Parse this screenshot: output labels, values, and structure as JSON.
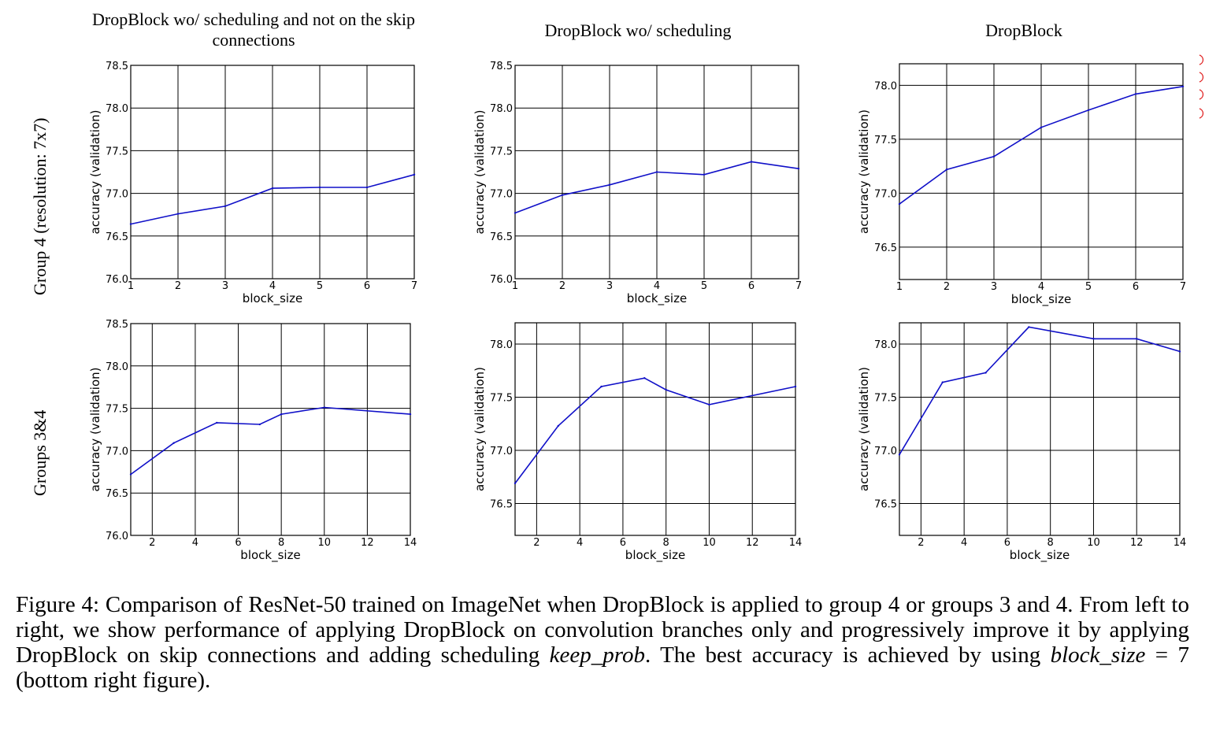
{
  "col_titles": [
    "DropBlock wo/ scheduling and not on the skip connections",
    "DropBlock wo/ scheduling",
    "DropBlock"
  ],
  "row_labels": [
    "Group 4 (resolution: 7x7)",
    "Groups 3&4"
  ],
  "caption": {
    "figure": "Figure 4:",
    "text_1": " Comparison of ResNet-50 trained on ImageNet when DropBlock is applied to group 4 or groups 3 and 4. From left to right, we show performance of applying DropBlock on convolution branches only and progressively improve it by applying DropBlock on skip connections and adding scheduling ",
    "math_1": "keep_prob",
    "text_2": ". The best accuracy is achieved by using ",
    "math_2": "block_size",
    "math_eq": " = 7",
    "text_3": " (bottom right figure)."
  },
  "colors": {
    "line": "#1010c8",
    "grid": "#000000",
    "edge_mark": "#e02020"
  },
  "chart_data": [
    {
      "type": "line",
      "title": "",
      "xlabel": "block_size",
      "ylabel": "accuracy (validation)",
      "xlim": [
        1,
        7
      ],
      "ylim": [
        76.0,
        78.5
      ],
      "xticks": [
        1,
        2,
        3,
        4,
        5,
        6,
        7
      ],
      "xtick_labels": [
        "1",
        "2",
        "3",
        "4",
        "5",
        "6",
        "7"
      ],
      "yticks": [
        76.0,
        76.5,
        77.0,
        77.5,
        78.0,
        78.5
      ],
      "ytick_labels": [
        "76.0",
        "76.5",
        "77.0",
        "77.5",
        "78.0",
        "78.5"
      ],
      "grid": true,
      "x": [
        1,
        2,
        3,
        4,
        5,
        6,
        7
      ],
      "y": [
        76.64,
        76.76,
        76.85,
        77.06,
        77.07,
        77.07,
        77.22
      ]
    },
    {
      "type": "line",
      "title": "",
      "xlabel": "block_size",
      "ylabel": "accuracy (validation)",
      "xlim": [
        1,
        7
      ],
      "ylim": [
        76.0,
        78.5
      ],
      "xticks": [
        1,
        2,
        3,
        4,
        5,
        6,
        7
      ],
      "xtick_labels": [
        "1",
        "2",
        "3",
        "4",
        "5",
        "6",
        "7"
      ],
      "yticks": [
        76.0,
        76.5,
        77.0,
        77.5,
        78.0,
        78.5
      ],
      "ytick_labels": [
        "76.0",
        "76.5",
        "77.0",
        "77.5",
        "78.0",
        "78.5"
      ],
      "grid": true,
      "x": [
        1,
        2,
        3,
        4,
        5,
        6,
        7
      ],
      "y": [
        76.77,
        76.98,
        77.1,
        77.25,
        77.22,
        77.37,
        77.29
      ]
    },
    {
      "type": "line",
      "title": "",
      "xlabel": "block_size",
      "ylabel": "accuracy (validation)",
      "xlim": [
        1,
        7
      ],
      "ylim": [
        76.2,
        78.2
      ],
      "xticks": [
        1,
        2,
        3,
        4,
        5,
        6,
        7
      ],
      "xtick_labels": [
        "1",
        "2",
        "3",
        "4",
        "5",
        "6",
        "7"
      ],
      "yticks": [
        76.5,
        77.0,
        77.5,
        78.0
      ],
      "ytick_labels": [
        "76.5",
        "77.0",
        "77.5",
        "78.0"
      ],
      "grid": true,
      "x": [
        1,
        2,
        3,
        4,
        5,
        6,
        7
      ],
      "y": [
        76.9,
        77.22,
        77.34,
        77.61,
        77.77,
        77.92,
        77.99
      ]
    },
    {
      "type": "line",
      "title": "",
      "xlabel": "block_size",
      "ylabel": "accuracy (validation)",
      "xlim": [
        1,
        14
      ],
      "ylim": [
        76.0,
        78.5
      ],
      "xticks": [
        2,
        4,
        6,
        8,
        10,
        12,
        14
      ],
      "xtick_labels": [
        "2",
        "4",
        "6",
        "8",
        "10",
        "12",
        "14"
      ],
      "yticks": [
        76.0,
        76.5,
        77.0,
        77.5,
        78.0,
        78.5
      ],
      "ytick_labels": [
        "76.0",
        "76.5",
        "77.0",
        "77.5",
        "78.0",
        "78.5"
      ],
      "grid": true,
      "x": [
        1,
        3,
        5,
        7,
        8,
        10,
        14
      ],
      "y": [
        76.72,
        77.09,
        77.33,
        77.31,
        77.43,
        77.51,
        77.43
      ]
    },
    {
      "type": "line",
      "title": "",
      "xlabel": "block_size",
      "ylabel": "accuracy (validation)",
      "xlim": [
        1,
        14
      ],
      "ylim": [
        76.2,
        78.2
      ],
      "xticks": [
        2,
        4,
        6,
        8,
        10,
        12,
        14
      ],
      "xtick_labels": [
        "2",
        "4",
        "6",
        "8",
        "10",
        "12",
        "14"
      ],
      "yticks": [
        76.5,
        77.0,
        77.5,
        78.0
      ],
      "ytick_labels": [
        "76.5",
        "77.0",
        "77.5",
        "78.0"
      ],
      "grid": true,
      "x": [
        1,
        3,
        5,
        7,
        8,
        10,
        14
      ],
      "y": [
        76.69,
        77.23,
        77.6,
        77.68,
        77.57,
        77.43,
        77.6
      ]
    },
    {
      "type": "line",
      "title": "",
      "xlabel": "block_size",
      "ylabel": "accuracy (validation)",
      "xlim": [
        1,
        14
      ],
      "ylim": [
        76.2,
        78.2
      ],
      "xticks": [
        2,
        4,
        6,
        8,
        10,
        12,
        14
      ],
      "xtick_labels": [
        "2",
        "4",
        "6",
        "8",
        "10",
        "12",
        "14"
      ],
      "yticks": [
        76.5,
        77.0,
        77.5,
        78.0
      ],
      "ytick_labels": [
        "76.5",
        "77.0",
        "77.5",
        "78.0"
      ],
      "grid": true,
      "x": [
        1,
        3,
        5,
        7,
        10,
        12,
        14
      ],
      "y": [
        76.96,
        77.64,
        77.73,
        78.16,
        78.05,
        78.05,
        77.93
      ]
    }
  ]
}
